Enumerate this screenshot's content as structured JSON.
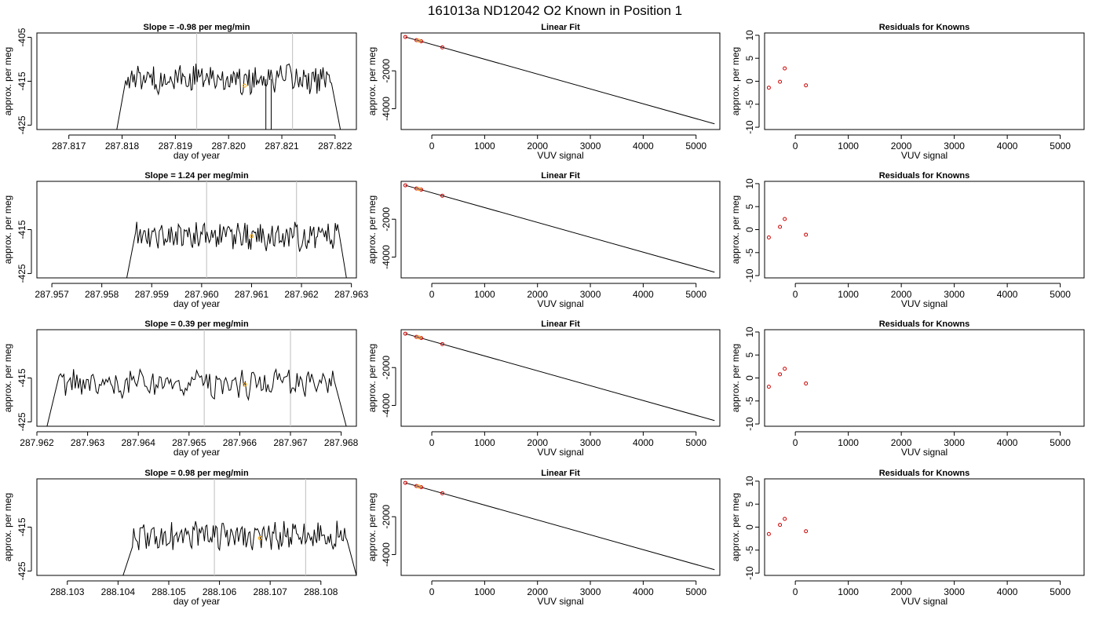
{
  "page_title": "161013a     ND12042   O2 Known in Position  1",
  "colors": {
    "trace": "#000000",
    "window": "#c8c8c8",
    "fit_marker": "#ffa500",
    "point": "#cc0000"
  },
  "chart_data": [
    {
      "panel": "trace",
      "row": 0,
      "type": "line",
      "title": "Slope =  -0.98  per meg/min",
      "xlabel": "day of year",
      "ylabel": "approx. per meg",
      "xlim": [
        287.8164,
        287.8224
      ],
      "ylim": [
        -426,
        -404
      ],
      "xticks": [
        "287.817",
        "287.818",
        "287.819",
        "287.820",
        "287.821",
        "287.822"
      ],
      "yticks": [
        "-405",
        "-415",
        "-425"
      ],
      "vlines": [
        287.8194,
        287.8212
      ],
      "trace_start": 287.8179,
      "trace_end": 287.8221,
      "mean": -414.5,
      "ripple": 1.8,
      "drops": [
        [
          287.8207,
          -426
        ],
        [
          287.8208,
          -426
        ]
      ],
      "fit_marker": [
        287.8203,
        -416
      ]
    },
    {
      "panel": "fit",
      "row": 0,
      "type": "line",
      "title": "Linear Fit",
      "xlabel": "VUV signal",
      "ylabel": "approx. per meg",
      "xlim": [
        -580,
        5450
      ],
      "ylim": [
        -5100,
        0
      ],
      "xticks": [
        "0",
        "1000",
        "2000",
        "3000",
        "4000",
        "5000"
      ],
      "yticks": [
        "-2000",
        "-4000"
      ],
      "line": [
        [
          -500,
          -210
        ],
        [
          5350,
          -4800
        ]
      ],
      "points": [
        [
          -500,
          -210
        ],
        [
          -290,
          -380
        ],
        [
          -200,
          -440
        ],
        [
          200,
          -760
        ]
      ],
      "marker": [
        -250,
        -405
      ]
    },
    {
      "panel": "residuals",
      "row": 0,
      "type": "scatter",
      "title": "Residuals for Knowns",
      "xlabel": "VUV signal",
      "ylabel": "approx. per meg",
      "xlim": [
        -580,
        5450
      ],
      "ylim": [
        -10.5,
        10.5
      ],
      "xticks": [
        "0",
        "1000",
        "2000",
        "3000",
        "4000",
        "5000"
      ],
      "yticks": [
        "10",
        "5",
        "0",
        "-5",
        "-10"
      ],
      "points": [
        [
          -500,
          -1.4
        ],
        [
          -290,
          -0.1
        ],
        [
          -200,
          2.8
        ],
        [
          200,
          -0.9
        ]
      ]
    },
    {
      "panel": "trace",
      "row": 1,
      "type": "line",
      "title": "Slope =  1.24  per meg/min",
      "xlabel": "day of year",
      "ylabel": "approx. per meg",
      "xlim": [
        287.9567,
        287.9631
      ],
      "ylim": [
        -426,
        -404
      ],
      "xticks": [
        "287.957",
        "287.958",
        "287.959",
        "287.960",
        "287.961",
        "287.962",
        "287.963"
      ],
      "yticks": [
        "-415",
        "-425"
      ],
      "vlines": [
        287.9601,
        287.9619
      ],
      "trace_start": 287.9585,
      "trace_end": 287.9629,
      "mean": -416.5,
      "ripple": 1.7,
      "drops": [],
      "fit_marker": [
        287.961,
        -416.5
      ]
    },
    {
      "panel": "fit",
      "row": 1,
      "type": "line",
      "title": "Linear Fit",
      "xlabel": "VUV signal",
      "ylabel": "approx. per meg",
      "xlim": [
        -580,
        5450
      ],
      "ylim": [
        -5100,
        0
      ],
      "xticks": [
        "0",
        "1000",
        "2000",
        "3000",
        "4000",
        "5000"
      ],
      "yticks": [
        "-2000",
        "-4000"
      ],
      "line": [
        [
          -500,
          -210
        ],
        [
          5350,
          -4800
        ]
      ],
      "points": [
        [
          -500,
          -210
        ],
        [
          -290,
          -380
        ],
        [
          -200,
          -440
        ],
        [
          200,
          -760
        ]
      ],
      "marker": [
        -250,
        -405
      ]
    },
    {
      "panel": "residuals",
      "row": 1,
      "type": "scatter",
      "title": "Residuals for Knowns",
      "xlabel": "VUV signal",
      "ylabel": "approx. per meg",
      "xlim": [
        -580,
        5450
      ],
      "ylim": [
        -10.5,
        10.5
      ],
      "xticks": [
        "0",
        "1000",
        "2000",
        "3000",
        "4000",
        "5000"
      ],
      "yticks": [
        "10",
        "5",
        "0",
        "-5",
        "-10"
      ],
      "points": [
        [
          -500,
          -1.7
        ],
        [
          -290,
          0.6
        ],
        [
          -200,
          2.3
        ],
        [
          200,
          -1.1
        ]
      ]
    },
    {
      "panel": "trace",
      "row": 2,
      "type": "line",
      "title": "Slope =  0.39  per meg/min",
      "xlabel": "day of year",
      "ylabel": "approx. per meg",
      "xlim": [
        287.962,
        287.9683
      ],
      "ylim": [
        -426,
        -404
      ],
      "xticks": [
        "287.962",
        "287.963",
        "287.964",
        "287.965",
        "287.966",
        "287.967",
        "287.968"
      ],
      "yticks": [
        "-415",
        "-425"
      ],
      "vlines": [
        287.9653,
        287.967
      ],
      "trace_start": 287.9622,
      "trace_end": 287.9681,
      "mean": -416.5,
      "ripple": 1.7,
      "drops": [],
      "fit_marker": [
        287.9661,
        -416.5
      ]
    },
    {
      "panel": "fit",
      "row": 2,
      "type": "line",
      "title": "Linear Fit",
      "xlabel": "VUV signal",
      "ylabel": "approx. per meg",
      "xlim": [
        -580,
        5450
      ],
      "ylim": [
        -5100,
        0
      ],
      "xticks": [
        "0",
        "1000",
        "2000",
        "3000",
        "4000",
        "5000"
      ],
      "yticks": [
        "-2000",
        "-4000"
      ],
      "line": [
        [
          -500,
          -210
        ],
        [
          5350,
          -4800
        ]
      ],
      "points": [
        [
          -500,
          -210
        ],
        [
          -290,
          -380
        ],
        [
          -200,
          -440
        ],
        [
          200,
          -760
        ]
      ],
      "marker": [
        -250,
        -405
      ]
    },
    {
      "panel": "residuals",
      "row": 2,
      "type": "scatter",
      "title": "Residuals for Knowns",
      "xlabel": "VUV signal",
      "ylabel": "approx. per meg",
      "xlim": [
        -580,
        5450
      ],
      "ylim": [
        -10.5,
        10.5
      ],
      "xticks": [
        "0",
        "1000",
        "2000",
        "3000",
        "4000",
        "5000"
      ],
      "yticks": [
        "10",
        "5",
        "0",
        "-5",
        "-10"
      ],
      "points": [
        [
          -500,
          -1.9
        ],
        [
          -290,
          0.8
        ],
        [
          -200,
          2.0
        ],
        [
          200,
          -1.2
        ]
      ]
    },
    {
      "panel": "trace",
      "row": 3,
      "type": "line",
      "title": "Slope =  0.98  per meg/min",
      "xlabel": "day of year",
      "ylabel": "approx. per meg",
      "xlim": [
        288.1024,
        288.1087
      ],
      "ylim": [
        -426,
        -404
      ],
      "xticks": [
        "288.103",
        "288.104",
        "288.105",
        "288.106",
        "288.107",
        "288.108"
      ],
      "yticks": [
        "-415",
        "-425"
      ],
      "vlines": [
        288.1059,
        288.1077
      ],
      "trace_start": 288.1041,
      "trace_end": 288.1087,
      "mean": -417,
      "ripple": 1.8,
      "drops": [],
      "fit_marker": [
        288.1068,
        -417.5
      ]
    },
    {
      "panel": "fit",
      "row": 3,
      "type": "line",
      "title": "Linear Fit",
      "xlabel": "VUV signal",
      "ylabel": "approx. per meg",
      "xlim": [
        -580,
        5450
      ],
      "ylim": [
        -5100,
        0
      ],
      "xticks": [
        "0",
        "1000",
        "2000",
        "3000",
        "4000",
        "5000"
      ],
      "yticks": [
        "-2000",
        "-4000"
      ],
      "line": [
        [
          -500,
          -210
        ],
        [
          5350,
          -4800
        ]
      ],
      "points": [
        [
          -500,
          -210
        ],
        [
          -290,
          -380
        ],
        [
          -200,
          -440
        ],
        [
          200,
          -760
        ]
      ],
      "marker": [
        -250,
        -405
      ]
    },
    {
      "panel": "residuals",
      "row": 3,
      "type": "scatter",
      "title": "Residuals for Knowns",
      "xlabel": "VUV signal",
      "ylabel": "approx. per meg",
      "xlim": [
        -580,
        5450
      ],
      "ylim": [
        -10.5,
        10.5
      ],
      "xticks": [
        "0",
        "1000",
        "2000",
        "3000",
        "4000",
        "5000"
      ],
      "yticks": [
        "10",
        "5",
        "0",
        "-5",
        "-10"
      ],
      "points": [
        [
          -500,
          -1.5
        ],
        [
          -290,
          0.5
        ],
        [
          -200,
          1.8
        ],
        [
          200,
          -0.9
        ]
      ]
    }
  ]
}
